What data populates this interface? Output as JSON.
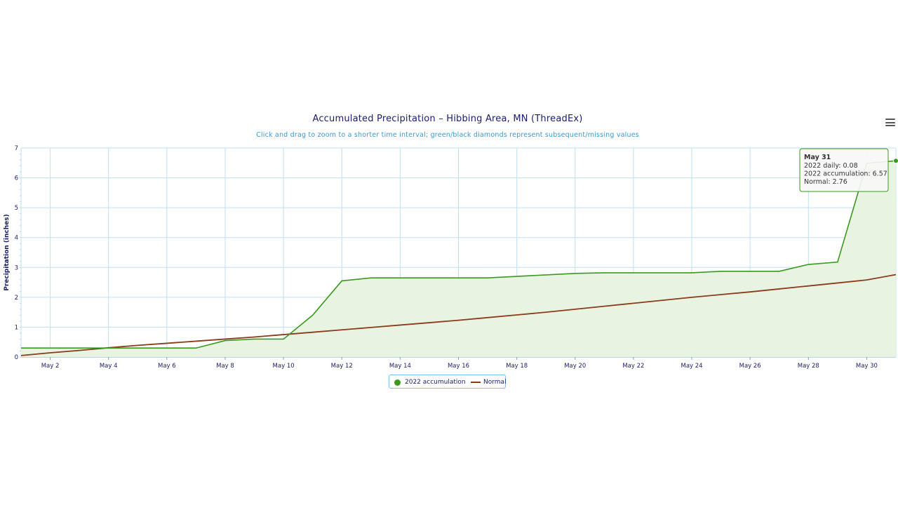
{
  "chart_data": {
    "type": "area",
    "title": "Accumulated Precipitation – Hibbing Area, MN (ThreadEx)",
    "subtitle": "Click and drag to zoom to a shorter time interval; green/black diamonds represent subsequent/missing values",
    "ylabel": "Precipitation (inches)",
    "xlabel": "",
    "ylim": [
      0,
      7
    ],
    "yticks": [
      0,
      1,
      2,
      3,
      4,
      5,
      6,
      7
    ],
    "xlim": [
      1,
      31
    ],
    "x_tick_days": [
      2,
      4,
      6,
      8,
      10,
      12,
      14,
      16,
      18,
      20,
      22,
      24,
      26,
      28,
      30
    ],
    "x_tick_labels": [
      "May 2",
      "May 4",
      "May 6",
      "May 8",
      "May 10",
      "May 12",
      "May 14",
      "May 16",
      "May 18",
      "May 20",
      "May 22",
      "May 24",
      "May 26",
      "May 28",
      "May 30"
    ],
    "grid": true,
    "legend_position": "bottom-center",
    "x": [
      1,
      2,
      3,
      4,
      5,
      6,
      7,
      8,
      9,
      10,
      11,
      12,
      13,
      14,
      15,
      16,
      17,
      18,
      19,
      20,
      21,
      22,
      23,
      24,
      25,
      26,
      27,
      28,
      29,
      30,
      31
    ],
    "series": [
      {
        "name": "2022 accumulation",
        "color": "#3a9a1e",
        "fill": "#e8f4e1",
        "values": [
          0.3,
          0.3,
          0.3,
          0.3,
          0.3,
          0.3,
          0.3,
          0.55,
          0.6,
          0.6,
          1.4,
          2.55,
          2.65,
          2.65,
          2.65,
          2.65,
          2.65,
          2.7,
          2.75,
          2.8,
          2.82,
          2.82,
          2.82,
          2.82,
          2.87,
          2.87,
          2.87,
          3.1,
          3.18,
          6.49,
          6.57
        ]
      },
      {
        "name": "Normal",
        "color": "#8b3a1a",
        "values": [
          0.05,
          0.14,
          0.22,
          0.31,
          0.39,
          0.46,
          0.53,
          0.6,
          0.67,
          0.75,
          0.83,
          0.91,
          0.99,
          1.07,
          1.15,
          1.23,
          1.32,
          1.41,
          1.5,
          1.6,
          1.7,
          1.8,
          1.9,
          2.0,
          2.09,
          2.18,
          2.28,
          2.38,
          2.48,
          2.58,
          2.76
        ]
      }
    ],
    "tooltip": {
      "title": "May 31",
      "lines": [
        "2022 daily: 0.08",
        "2022 accumulation: 6.57",
        "Normal: 2.76"
      ],
      "border_color": "#3a9a1e"
    }
  },
  "menu": {
    "icon": "hamburger-menu-icon"
  }
}
